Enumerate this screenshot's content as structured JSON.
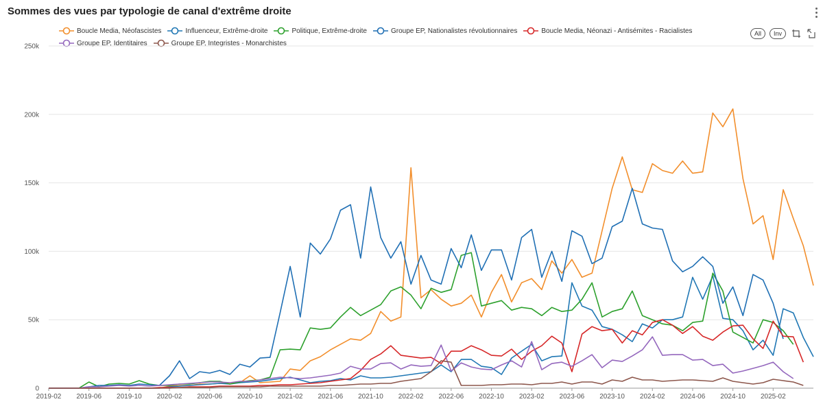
{
  "title": "Sommes des vues par typologie de canal d'extrême droite",
  "toolbar": {
    "all_label": "All",
    "inv_label": "Inv"
  },
  "colors": {
    "orange": "#f28e2b",
    "blue": "#1f77b4",
    "green": "#2ca02c",
    "steelblue": "#1f6fb4",
    "red": "#d62728",
    "purple": "#9467bd",
    "brown": "#8c564b"
  },
  "chart_data": {
    "type": "line",
    "title": "Sommes des vues par typologie de canal d'extrême droite",
    "xlabel": "",
    "ylabel": "",
    "ylim": [
      0,
      250000
    ],
    "yticks": [
      0,
      50000,
      100000,
      150000,
      200000,
      250000
    ],
    "ytick_labels": [
      "0",
      "50k",
      "100k",
      "150k",
      "200k",
      "250k"
    ],
    "x_start": "2019-02",
    "xtick_labels": [
      "2019-02",
      "2019-06",
      "2019-10",
      "2020-02",
      "2020-06",
      "2020-10",
      "2021-02",
      "2021-06",
      "2021-10",
      "2022-02",
      "2022-06",
      "2022-10",
      "2023-02",
      "2023-06",
      "2023-10",
      "2024-02",
      "2024-06",
      "2024-10",
      "2025-02"
    ],
    "legend_position": "top",
    "series": [
      {
        "name": "Boucle Media, Néofascistes",
        "color": "#f28e2b",
        "values": [
          0,
          0,
          0,
          0,
          0,
          0,
          0,
          0,
          0,
          0,
          0,
          0,
          1500,
          2000,
          2000,
          3000,
          3000,
          3500,
          4000,
          4000,
          9000,
          4000,
          4500,
          5000,
          14000,
          13000,
          20000,
          23000,
          28000,
          32000,
          36000,
          35000,
          40000,
          56000,
          49000,
          52000,
          161000,
          66000,
          72000,
          65000,
          60000,
          62000,
          68000,
          52000,
          70000,
          83000,
          63000,
          77000,
          80000,
          72000,
          93000,
          84000,
          94000,
          81000,
          84000,
          115000,
          146000,
          169000,
          145000,
          143000,
          164000,
          159000,
          157000,
          166000,
          157000,
          158000,
          201000,
          191000,
          204000,
          153000,
          120000,
          126000,
          94000,
          145000,
          124000,
          104000,
          75000
        ]
      },
      {
        "name": "Influenceur, Extrême-droite",
        "color": "#1f77b4",
        "values": [
          0,
          0,
          0,
          0,
          0,
          0,
          0,
          0,
          0,
          0,
          0,
          0,
          1000,
          1500,
          2000,
          2500,
          3000,
          3500,
          3000,
          4000,
          4500,
          5000,
          6000,
          7000,
          8000,
          6000,
          4000,
          5000,
          5500,
          7000,
          6000,
          9000,
          7500,
          7500,
          8000,
          9000,
          10000,
          11000,
          12000,
          17000,
          12000,
          21000,
          21000,
          16000,
          15000,
          10000,
          22000,
          27000,
          32000,
          20000,
          23000,
          23500,
          77000,
          60000,
          57000,
          45000,
          43000,
          39000,
          34000,
          47000,
          44000,
          50000,
          50000,
          52000,
          81000,
          65000,
          82000,
          51000,
          50000,
          42000,
          28000,
          35000,
          24000,
          58000,
          55000,
          37000,
          23000
        ]
      },
      {
        "name": "Politique, Extrême-droite",
        "color": "#2ca02c",
        "values": [
          0,
          0,
          0,
          0,
          4500,
          1000,
          3000,
          3500,
          3000,
          5500,
          3000,
          2000,
          2000,
          3000,
          3000,
          4000,
          5000,
          5000,
          3000,
          4500,
          5500,
          6000,
          8000,
          28000,
          28500,
          28000,
          44000,
          43000,
          44000,
          52000,
          59000,
          53000,
          57000,
          61000,
          71000,
          74000,
          68000,
          58000,
          73000,
          70000,
          72000,
          97000,
          99000,
          60000,
          62000,
          64000,
          57000,
          59000,
          58000,
          53000,
          59000,
          56000,
          57000,
          65000,
          77000,
          52000,
          56000,
          58000,
          71000,
          53000,
          50000,
          47000,
          46000,
          42000,
          48000,
          49000,
          84000,
          71000,
          41000,
          37000,
          33000,
          50000,
          48000,
          42000,
          32000
        ]
      },
      {
        "name": "Groupe EP, Nationalistes révolutionnaires",
        "color": "#1f6fb4",
        "values": [
          0,
          0,
          0,
          0,
          1000,
          2000,
          2000,
          2500,
          2000,
          3000,
          2500,
          2000,
          9000,
          20000,
          7000,
          12000,
          11000,
          13000,
          10000,
          17500,
          15500,
          22000,
          22500,
          55000,
          89000,
          52000,
          106000,
          98000,
          109000,
          130000,
          134000,
          95000,
          147000,
          110000,
          95000,
          107000,
          76000,
          97000,
          79000,
          76000,
          102000,
          88000,
          112000,
          86000,
          101000,
          101000,
          79000,
          110000,
          116000,
          81000,
          100000,
          78000,
          115000,
          111000,
          91000,
          95000,
          118000,
          122000,
          146000,
          120000,
          117000,
          116000,
          93000,
          85000,
          89000,
          96000,
          89000,
          62000,
          74000,
          53000,
          83000,
          79000,
          62000,
          36000
        ]
      },
      {
        "name": "Boucle Media, Néonazi - Antisémites - Racialistes",
        "color": "#d62728",
        "values": [
          0,
          0,
          0,
          0,
          0,
          0,
          0,
          0,
          0,
          0,
          0,
          500,
          500,
          500,
          1000,
          1000,
          1000,
          1500,
          1500,
          1500,
          1500,
          2000,
          2000,
          2500,
          2500,
          3000,
          3500,
          4000,
          5000,
          6000,
          7000,
          13000,
          21000,
          25000,
          31000,
          24000,
          23000,
          22000,
          22500,
          18000,
          27000,
          27000,
          31000,
          28000,
          24000,
          23500,
          28500,
          21000,
          27000,
          31000,
          38000,
          33000,
          12000,
          39500,
          45000,
          42000,
          43000,
          33000,
          42000,
          39000,
          48000,
          50000,
          46000,
          40000,
          45000,
          38000,
          35000,
          41000,
          45500,
          46000,
          36000,
          29000,
          49000,
          38000,
          37500,
          19000
        ]
      },
      {
        "name": "Groupe EP, Identitaires",
        "color": "#9467bd",
        "values": [
          0,
          0,
          0,
          0,
          1000,
          1000,
          1500,
          2000,
          1500,
          2000,
          1500,
          2000,
          2500,
          3000,
          3500,
          4000,
          4500,
          4500,
          4000,
          5000,
          5000,
          6000,
          7000,
          8000,
          7500,
          7000,
          7500,
          8500,
          9500,
          11000,
          16000,
          14000,
          14000,
          18000,
          18500,
          14000,
          17000,
          16000,
          16500,
          31500,
          12500,
          18500,
          15500,
          14000,
          13500,
          17000,
          20000,
          15500,
          34000,
          13500,
          18000,
          19000,
          16000,
          20000,
          24500,
          15000,
          20500,
          19500,
          23500,
          28000,
          37500,
          24000,
          24500,
          24500,
          20500,
          21000,
          16500,
          17500,
          11000,
          12500,
          14500,
          16500,
          19000,
          12000,
          7000
        ]
      },
      {
        "name": "Groupe EP, Integristes - Monarchistes",
        "color": "#8c564b",
        "values": [
          0,
          0,
          0,
          0,
          0,
          0,
          0,
          0,
          0,
          0,
          0,
          0,
          0,
          500,
          500,
          500,
          500,
          1000,
          1000,
          1000,
          1000,
          1000,
          1500,
          1500,
          1500,
          1500,
          1500,
          1500,
          2000,
          2000,
          2500,
          3000,
          3000,
          3500,
          3500,
          5000,
          6000,
          7000,
          12000,
          20000,
          19000,
          2000,
          2000,
          2000,
          2500,
          2500,
          3000,
          3000,
          2500,
          3500,
          3500,
          4500,
          3000,
          4500,
          4500,
          3000,
          6000,
          5000,
          8000,
          6000,
          6000,
          5000,
          5500,
          6000,
          6000,
          5500,
          5000,
          7500,
          5000,
          4000,
          3000,
          4000,
          6500,
          5500,
          4500,
          2000
        ]
      }
    ]
  }
}
